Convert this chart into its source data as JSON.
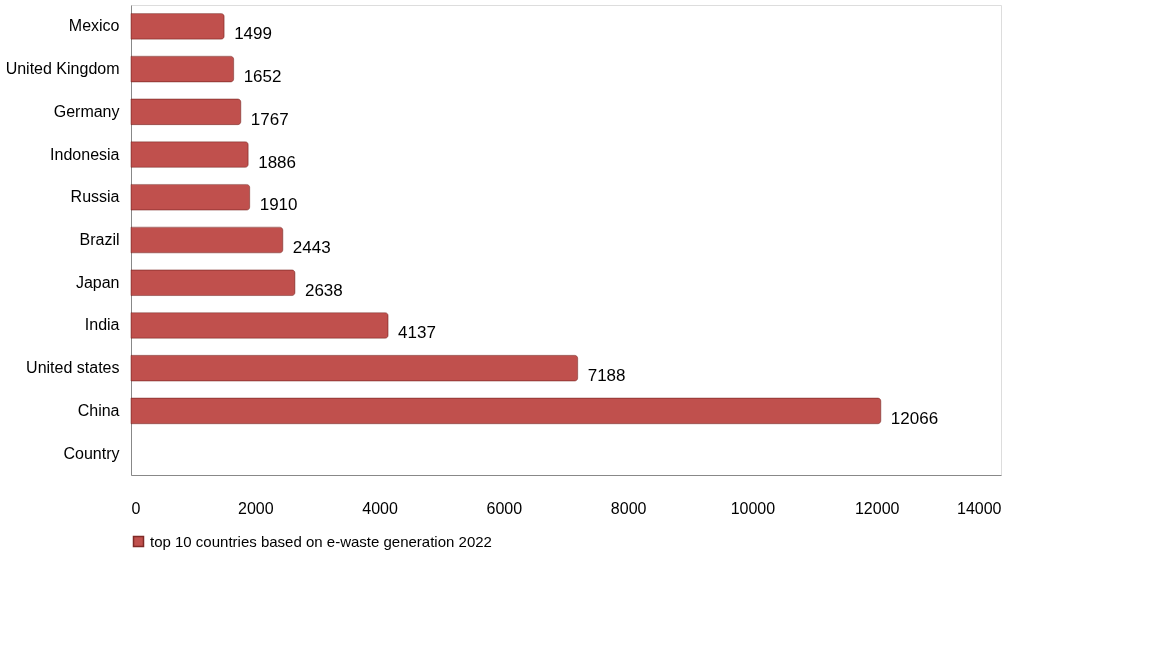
{
  "chart_data": {
    "type": "bar",
    "orientation": "horizontal",
    "categories": [
      "Mexico",
      "United Kingdom",
      "Germany",
      "Indonesia",
      "Russia",
      "Brazil",
      "Japan",
      "India",
      "United states",
      "China",
      "Country"
    ],
    "series": [
      {
        "name": "top 10 countries based on e-waste generation 2022",
        "color": "#c0504d",
        "values": [
          1499,
          1652,
          1767,
          1886,
          1910,
          2443,
          2638,
          4137,
          7188,
          12066,
          null
        ]
      }
    ],
    "xlim": [
      0,
      14000
    ],
    "xticks": [
      0,
      2000,
      4000,
      6000,
      8000,
      10000,
      12000,
      14000
    ],
    "data_labels": true,
    "grid": false,
    "legend": "bottom"
  }
}
